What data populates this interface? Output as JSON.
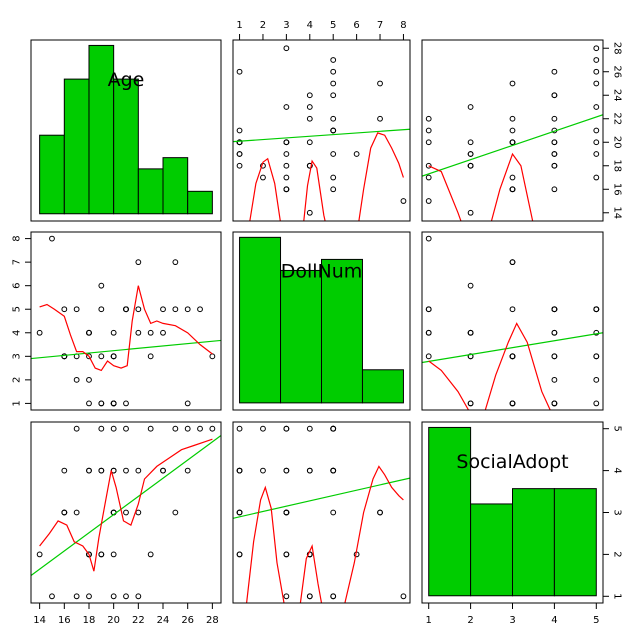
{
  "chart_data": {
    "type": "scatter-matrix",
    "variables": [
      "Age",
      "DollNum",
      "SocialAdopt"
    ],
    "ranges": {
      "Age": [
        13.3,
        28.7
      ],
      "DollNum": [
        0.72,
        8.28
      ],
      "SocialAdopt": [
        0.84,
        5.16
      ]
    },
    "ticks": {
      "Age": [
        14,
        16,
        18,
        20,
        22,
        24,
        26,
        28
      ],
      "DollNum": [
        1,
        2,
        3,
        4,
        5,
        6,
        7,
        8
      ],
      "SocialAdopt": [
        1,
        2,
        3,
        4,
        5
      ]
    },
    "observations": {
      "Age": [
        14,
        15,
        16,
        16,
        16,
        16,
        17,
        17,
        17,
        18,
        18,
        18,
        18,
        18,
        18,
        19,
        19,
        19,
        19,
        19,
        20,
        20,
        20,
        20,
        20,
        20,
        20,
        20,
        21,
        21,
        21,
        21,
        22,
        22,
        22,
        23,
        23,
        24,
        24,
        25,
        25,
        26,
        26,
        27,
        28
      ],
      "DollNum": [
        4,
        8,
        3,
        3,
        3,
        5,
        3,
        2,
        5,
        1,
        3,
        4,
        4,
        4,
        2,
        1,
        1,
        3,
        6,
        5,
        1,
        1,
        1,
        1,
        3,
        3,
        3,
        4,
        1,
        5,
        5,
        5,
        4,
        5,
        7,
        3,
        4,
        4,
        5,
        5,
        7,
        1,
        5,
        5,
        3
      ],
      "SocialAdopt": [
        2,
        1,
        3,
        4,
        3,
        3,
        3,
        5,
        1,
        2,
        1,
        4,
        2,
        2,
        4,
        4,
        2,
        5,
        2,
        4,
        5,
        3,
        3,
        4,
        4,
        3,
        2,
        1,
        3,
        5,
        4,
        1,
        1,
        4,
        3,
        2,
        5,
        4,
        4,
        5,
        3,
        4,
        5,
        5,
        5
      ]
    },
    "histograms": {
      "Age": {
        "breaks": [
          14,
          16,
          18,
          20,
          22,
          24,
          26,
          28
        ],
        "counts": [
          7,
          12,
          15,
          12,
          4,
          5,
          2
        ]
      },
      "DollNum": {
        "breaks": [
          1,
          2.75,
          4.5,
          6.25,
          8
        ],
        "counts": [
          15,
          12,
          13,
          3
        ]
      },
      "SocialAdopt": {
        "breaks": [
          1,
          2,
          3,
          4,
          5
        ],
        "counts": [
          11,
          6,
          7,
          7
        ]
      }
    },
    "regression_lines": [
      {
        "x": "DollNum",
        "y": "Age",
        "intercept": 19.95,
        "slope": 0.14
      },
      {
        "x": "SocialAdopt",
        "y": "Age",
        "intercept": 16.1,
        "slope": 1.21
      },
      {
        "x": "Age",
        "y": "DollNum",
        "intercept": 2.24,
        "slope": 0.05
      },
      {
        "x": "SocialAdopt",
        "y": "DollNum",
        "intercept": 2.49,
        "slope": 0.293
      },
      {
        "x": "Age",
        "y": "SocialAdopt",
        "intercept": -1.39,
        "slope": 0.217
      },
      {
        "x": "DollNum",
        "y": "SocialAdopt",
        "intercept": 2.77,
        "slope": 0.127
      }
    ],
    "smooth_lines": [
      {
        "x": "DollNum",
        "y": "Age",
        "points": [
          [
            1.3,
            11.6
          ],
          [
            1.7,
            16.5
          ],
          [
            2.0,
            18.3
          ],
          [
            2.2,
            18.6
          ],
          [
            2.5,
            16.5
          ],
          [
            2.8,
            12.5
          ]
        ]
      },
      {
        "x": "DollNum",
        "y": "Age",
        "points": [
          [
            3.7,
            12.5
          ],
          [
            3.9,
            16.3
          ],
          [
            4.1,
            18.4
          ],
          [
            4.3,
            17.8
          ],
          [
            4.6,
            13.8
          ],
          [
            4.8,
            12.0
          ]
        ]
      },
      {
        "x": "DollNum",
        "y": "Age",
        "points": [
          [
            6.0,
            12.0
          ],
          [
            6.3,
            16.0
          ],
          [
            6.6,
            19.5
          ],
          [
            6.9,
            20.8
          ],
          [
            7.2,
            20.6
          ],
          [
            7.5,
            19.5
          ],
          [
            7.8,
            18.2
          ],
          [
            8.0,
            17.0
          ]
        ]
      },
      {
        "x": "SocialAdopt",
        "y": "Age",
        "points": [
          [
            1.0,
            18.0
          ],
          [
            1.3,
            17.5
          ],
          [
            1.7,
            14.0
          ],
          [
            2.0,
            11.0
          ]
        ]
      },
      {
        "x": "SocialAdopt",
        "y": "Age",
        "points": [
          [
            2.4,
            12.0
          ],
          [
            2.7,
            16.0
          ],
          [
            3.0,
            19.0
          ],
          [
            3.2,
            18.0
          ],
          [
            3.5,
            13.0
          ],
          [
            3.7,
            11.0
          ]
        ]
      },
      {
        "x": "Age",
        "y": "DollNum",
        "points": [
          [
            14.0,
            5.1
          ],
          [
            14.6,
            5.2
          ],
          [
            15.2,
            5.0
          ],
          [
            16.0,
            4.7
          ],
          [
            16.5,
            3.9
          ],
          [
            17.0,
            3.2
          ],
          [
            17.5,
            3.2
          ],
          [
            18.0,
            3.0
          ],
          [
            18.5,
            2.5
          ],
          [
            19.0,
            2.4
          ],
          [
            19.5,
            2.8
          ],
          [
            20.0,
            2.6
          ],
          [
            20.6,
            2.5
          ],
          [
            21.1,
            2.6
          ],
          [
            21.5,
            4.5
          ],
          [
            22.0,
            6.0
          ],
          [
            22.5,
            5.0
          ],
          [
            23.0,
            4.4
          ],
          [
            23.5,
            4.5
          ],
          [
            24.0,
            4.4
          ],
          [
            25.0,
            4.3
          ],
          [
            26.0,
            4.0
          ],
          [
            27.0,
            3.5
          ],
          [
            28.0,
            3.1
          ]
        ]
      },
      {
        "x": "SocialAdopt",
        "y": "DollNum",
        "points": [
          [
            1.0,
            2.8
          ],
          [
            1.3,
            2.4
          ],
          [
            1.7,
            1.5
          ],
          [
            1.95,
            0.72
          ]
        ]
      },
      {
        "x": "SocialAdopt",
        "y": "DollNum",
        "points": [
          [
            2.35,
            0.72
          ],
          [
            2.6,
            2.2
          ],
          [
            2.9,
            3.6
          ],
          [
            3.1,
            4.4
          ],
          [
            3.35,
            3.6
          ],
          [
            3.7,
            1.5
          ],
          [
            3.9,
            0.72
          ]
        ]
      },
      {
        "x": "Age",
        "y": "SocialAdopt",
        "points": [
          [
            14.0,
            2.2
          ],
          [
            14.8,
            2.5
          ],
          [
            15.5,
            2.8
          ],
          [
            16.2,
            2.7
          ],
          [
            16.8,
            2.3
          ],
          [
            17.5,
            2.2
          ],
          [
            18.0,
            2.0
          ],
          [
            18.4,
            1.6
          ],
          [
            18.8,
            2.4
          ],
          [
            19.3,
            3.2
          ],
          [
            19.8,
            4.0
          ],
          [
            20.2,
            3.6
          ],
          [
            20.8,
            2.8
          ],
          [
            21.4,
            2.7
          ],
          [
            22.0,
            3.2
          ],
          [
            22.5,
            3.8
          ],
          [
            23.5,
            4.1
          ],
          [
            24.5,
            4.3
          ],
          [
            25.5,
            4.5
          ],
          [
            26.5,
            4.6
          ],
          [
            27.5,
            4.7
          ],
          [
            28.0,
            4.75
          ]
        ]
      },
      {
        "x": "DollNum",
        "y": "SocialAdopt",
        "points": [
          [
            1.3,
            0.84
          ],
          [
            1.6,
            2.3
          ],
          [
            1.9,
            3.3
          ],
          [
            2.1,
            3.6
          ],
          [
            2.35,
            3.1
          ],
          [
            2.6,
            1.8
          ],
          [
            2.9,
            0.84
          ]
        ]
      },
      {
        "x": "DollNum",
        "y": "SocialAdopt",
        "points": [
          [
            3.6,
            0.84
          ],
          [
            3.85,
            1.9
          ],
          [
            4.1,
            2.2
          ],
          [
            4.35,
            1.3
          ],
          [
            4.5,
            0.84
          ]
        ]
      },
      {
        "x": "DollNum",
        "y": "SocialAdopt",
        "points": [
          [
            5.5,
            0.84
          ],
          [
            5.9,
            1.8
          ],
          [
            6.3,
            3.0
          ],
          [
            6.7,
            3.8
          ],
          [
            6.95,
            4.1
          ],
          [
            7.2,
            3.9
          ],
          [
            7.5,
            3.6
          ],
          [
            7.8,
            3.4
          ],
          [
            8.0,
            3.3
          ]
        ]
      }
    ],
    "colors": {
      "bar": "#00cc00",
      "regression": "#00cc00",
      "smooth": "#ff0000",
      "points": "#000000",
      "frame": "#000000"
    },
    "grid": false,
    "legend": "none"
  }
}
